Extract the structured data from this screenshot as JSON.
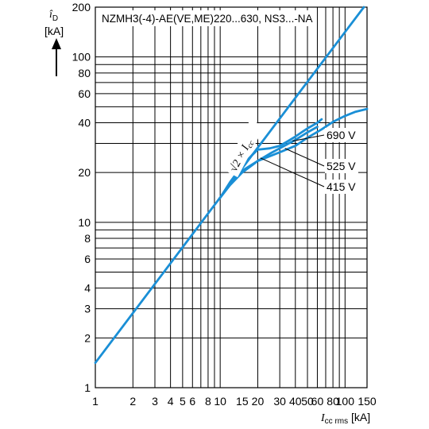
{
  "chart_data": {
    "type": "line",
    "title": "NZMH3(-4)-AE(VE,ME)220...630, NS3...-NA",
    "x_scale": "log",
    "y_scale": "log",
    "xlim": [
      1,
      150
    ],
    "ylim": [
      1,
      200
    ],
    "x_ticks": [
      1,
      2,
      3,
      4,
      5,
      6,
      8,
      10,
      15,
      20,
      30,
      40,
      50,
      60,
      80,
      100,
      150
    ],
    "x_tick_labels": [
      "1",
      "2",
      "3",
      "4",
      "5",
      "6",
      "8",
      "10",
      "15",
      "20",
      "30",
      "40",
      "50",
      "60",
      "80",
      "100",
      "150"
    ],
    "y_ticks": [
      1,
      2,
      3,
      4,
      6,
      8,
      10,
      20,
      40,
      60,
      80,
      100,
      200
    ],
    "y_tick_labels": [
      "1",
      "2",
      "3",
      "4",
      "6",
      "8",
      "10",
      "20",
      "40",
      "60",
      "80",
      "100",
      "200"
    ],
    "ylabel": {
      "symbol": "î",
      "sub": "D",
      "unit": "[kA]"
    },
    "xlabel": {
      "symbol": "I",
      "sub": "cc rms",
      "unit": "[kA]"
    },
    "grid": true,
    "line_color": "#1a8fd6",
    "series": [
      {
        "name": "√2 × Icc",
        "label_main": "√2 × I",
        "label_sub": "cc",
        "x": [
          1,
          10,
          100,
          141.4
        ],
        "y": [
          1.414,
          14.14,
          141.4,
          200
        ]
      },
      {
        "name": "690 V",
        "label": "690 V",
        "x": [
          10,
          12,
          15,
          20,
          25,
          30,
          40,
          50,
          60
        ],
        "y": [
          14.1,
          17,
          20.5,
          23.5,
          26,
          28,
          31.5,
          35,
          37.8
        ]
      },
      {
        "name": "525 V",
        "label": "525 V",
        "x": [
          10,
          12,
          15,
          20,
          30,
          40,
          50,
          65,
          80,
          100,
          120,
          150
        ],
        "y": [
          14.1,
          16.8,
          20,
          23.5,
          26.5,
          29,
          32.5,
          36.5,
          40.5,
          44,
          46.5,
          48.5
        ]
      },
      {
        "name": "415 V",
        "label": "415 V",
        "x": [
          10,
          12,
          15,
          18,
          20,
          25,
          30,
          35,
          40,
          50,
          60,
          65
        ],
        "y": [
          14.1,
          17.5,
          22,
          25.5,
          27.5,
          28,
          29,
          31,
          33,
          37,
          40,
          42
        ]
      }
    ]
  }
}
